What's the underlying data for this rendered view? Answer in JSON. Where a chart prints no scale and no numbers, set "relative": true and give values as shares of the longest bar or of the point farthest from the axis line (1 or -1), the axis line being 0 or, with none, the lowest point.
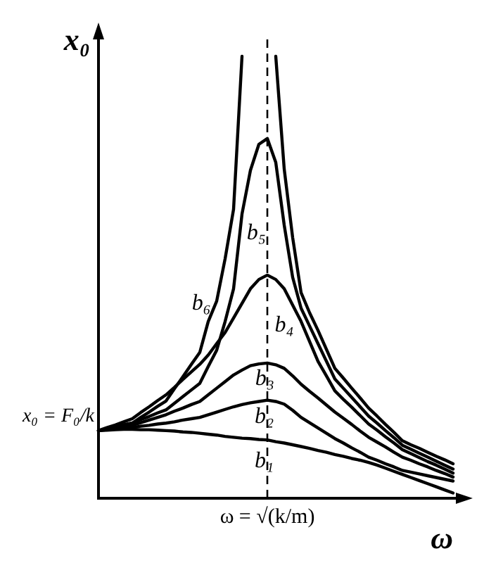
{
  "chart_data": {
    "type": "line",
    "relative": true,
    "xlabel": "ω",
    "ylabel": "x₀",
    "grid": false,
    "legend": false,
    "marker": "none",
    "line_style": "solid",
    "categories": [
      null,
      null,
      null,
      null,
      null,
      null,
      null,
      null,
      null,
      null,
      null,
      null,
      null,
      null,
      null,
      null,
      null,
      null,
      null,
      null,
      null,
      null,
      null,
      null,
      null,
      null,
      null,
      null,
      null,
      null,
      null,
      null,
      null,
      null,
      null,
      null,
      null,
      null,
      null,
      null,
      null,
      null,
      null
    ],
    "ref_lines": [
      {
        "axis": "x",
        "label": "ω = √(k/m)",
        "line_style": "dashed",
        "color": "#000000"
      }
    ],
    "annotations": [
      "x₀ = F₀/k"
    ],
    "series": [
      {
        "name": "b₁",
        "color": "#000000",
        "values": [
          0.153,
          0.154,
          0.155,
          0.156,
          0.156,
          0.155,
          0.155,
          0.154,
          0.153,
          0.152,
          0.15,
          0.149,
          0.147,
          0.145,
          0.143,
          0.14,
          0.138,
          0.136,
          0.135,
          0.133,
          0.132,
          0.128,
          0.125,
          0.121,
          0.117,
          0.113,
          0.108,
          0.104,
          0.099,
          0.095,
          0.09,
          0.086,
          0.081,
          0.075,
          0.068,
          0.061,
          0.054,
          0.047,
          0.04,
          0.033,
          0.026,
          0.019,
          0.012
        ]
      },
      {
        "name": "b₂",
        "color": "#000000",
        "values": [
          0.153,
          0.155,
          0.157,
          0.158,
          0.16,
          0.163,
          0.165,
          0.168,
          0.17,
          0.173,
          0.177,
          0.18,
          0.183,
          0.189,
          0.195,
          0.201,
          0.207,
          0.212,
          0.216,
          0.219,
          0.222,
          0.219,
          0.213,
          0.199,
          0.183,
          0.171,
          0.159,
          0.147,
          0.135,
          0.125,
          0.114,
          0.104,
          0.093,
          0.086,
          0.078,
          0.071,
          0.063,
          0.059,
          0.055,
          0.051,
          0.047,
          0.043,
          0.039
        ]
      },
      {
        "name": "b₃",
        "color": "#000000",
        "values": [
          0.153,
          0.156,
          0.159,
          0.162,
          0.165,
          0.171,
          0.177,
          0.183,
          0.189,
          0.197,
          0.204,
          0.212,
          0.219,
          0.234,
          0.249,
          0.264,
          0.279,
          0.29,
          0.3,
          0.304,
          0.306,
          0.302,
          0.294,
          0.277,
          0.258,
          0.242,
          0.227,
          0.211,
          0.195,
          0.181,
          0.167,
          0.152,
          0.138,
          0.127,
          0.116,
          0.104,
          0.093,
          0.086,
          0.078,
          0.071,
          0.063,
          0.056,
          0.048
        ]
      },
      {
        "name": "b₄",
        "color": "#000000",
        "values": [
          0.153,
          0.16,
          0.166,
          0.173,
          0.18,
          0.194,
          0.207,
          0.221,
          0.234,
          0.251,
          0.269,
          0.286,
          0.303,
          0.324,
          0.35,
          0.375,
          0.408,
          0.441,
          0.474,
          0.495,
          0.505,
          0.495,
          0.474,
          0.437,
          0.4,
          0.355,
          0.31,
          0.277,
          0.243,
          0.224,
          0.206,
          0.187,
          0.168,
          0.154,
          0.139,
          0.125,
          0.11,
          0.101,
          0.092,
          0.083,
          0.075,
          0.066,
          0.057
        ]
      },
      {
        "name": "b₅",
        "color": "#000000",
        "values": [
          0.153,
          0.157,
          0.162,
          0.166,
          0.17,
          0.178,
          0.185,
          0.193,
          0.2,
          0.215,
          0.23,
          0.245,
          0.26,
          0.298,
          0.335,
          0.4,
          0.474,
          0.643,
          0.742,
          0.801,
          0.814,
          0.76,
          0.618,
          0.5,
          0.43,
          0.39,
          0.35,
          0.31,
          0.27,
          0.249,
          0.228,
          0.207,
          0.186,
          0.17,
          0.153,
          0.137,
          0.12,
          0.111,
          0.102,
          0.093,
          0.084,
          0.075,
          0.066
        ]
      },
      {
        "name": "b₆",
        "color": "#000000",
        "values": [
          0.153,
          0.157,
          0.162,
          0.166,
          0.17,
          0.183,
          0.195,
          0.208,
          0.22,
          0.248,
          0.275,
          0.303,
          0.33,
          0.4,
          0.446,
          0.542,
          0.654,
          1,
          null,
          null,
          null,
          null,
          null,
          null,
          null,
          null,
          null,
          null,
          null,
          null,
          null,
          null,
          null,
          null,
          null,
          null,
          null,
          null,
          null,
          null,
          null,
          null,
          null
        ]
      },
      {
        "color": "#000000",
        "values": [
          null,
          null,
          null,
          null,
          null,
          null,
          null,
          null,
          null,
          null,
          null,
          null,
          null,
          null,
          null,
          null,
          null,
          null,
          null,
          null,
          null,
          1,
          0.745,
          0.59,
          0.465,
          0.42,
          0.38,
          0.337,
          0.294,
          0.272,
          0.249,
          0.227,
          0.204,
          0.186,
          0.167,
          0.149,
          0.13,
          0.121,
          0.113,
          0.104,
          0.095,
          0.087,
          0.078
        ]
      }
    ]
  }
}
